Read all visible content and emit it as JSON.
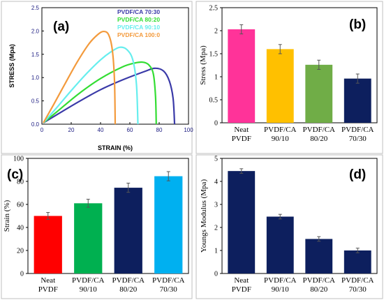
{
  "chart_data": [
    {
      "type": "line",
      "panel_label": "(a)",
      "xlabel": "STRAIN (%)",
      "ylabel": "STRESS (Mpa)",
      "xlim": [
        0,
        100
      ],
      "ylim": [
        0,
        2.5
      ],
      "xticks": [
        "0",
        "20",
        "40",
        "60",
        "80",
        "100"
      ],
      "yticks": [
        "0.0",
        "0.5",
        "1.0",
        "1.5",
        "2.0",
        "2.5"
      ],
      "legend_position": "top-right",
      "series": [
        {
          "name": "PVDF/CA 70:30",
          "color": "#3a3aa8",
          "x": [
            1,
            10,
            25,
            40,
            55,
            70,
            77,
            83,
            87,
            89.5,
            90.5
          ],
          "y": [
            0.03,
            0.2,
            0.48,
            0.74,
            0.95,
            1.13,
            1.2,
            1.14,
            0.92,
            0.55,
            0.0
          ]
        },
        {
          "name": "PVDF/CA 80:20",
          "color": "#33dd33",
          "x": [
            1,
            10,
            25,
            40,
            55,
            63,
            69,
            73,
            76,
            77.5,
            78
          ],
          "y": [
            0.03,
            0.26,
            0.65,
            0.98,
            1.23,
            1.31,
            1.33,
            1.27,
            1.08,
            0.6,
            0.0
          ]
        },
        {
          "name": "PVDF/CA 90:10",
          "color": "#66eeee",
          "x": [
            1,
            10,
            20,
            30,
            40,
            47,
            53,
            58,
            62,
            64.5,
            65.5
          ],
          "y": [
            0.03,
            0.35,
            0.72,
            1.07,
            1.38,
            1.55,
            1.65,
            1.6,
            1.38,
            0.85,
            0.0
          ]
        },
        {
          "name": "PVDF/CA 100:0",
          "color": "#f39a3c",
          "x": [
            1,
            8,
            16,
            24,
            32,
            38,
            42,
            45.5,
            48,
            49.5,
            50
          ],
          "y": [
            0.03,
            0.42,
            0.88,
            1.33,
            1.72,
            1.92,
            1.99,
            1.92,
            1.6,
            0.95,
            0.0
          ]
        }
      ]
    },
    {
      "type": "bar",
      "panel_label": "(b)",
      "ylabel": "Stress (Mpa)",
      "ylim": [
        0,
        2.5
      ],
      "yticks": [
        "0",
        "0.5",
        "1",
        "1.5",
        "2",
        "2.5"
      ],
      "categories": [
        [
          "Neat",
          "PVDF"
        ],
        [
          "PVDF/CA",
          "90/10"
        ],
        [
          "PVDF/CA",
          "80/20"
        ],
        [
          "PVDF/CA",
          "70/30"
        ]
      ],
      "values": [
        2.03,
        1.6,
        1.26,
        0.96
      ],
      "errors": [
        0.1,
        0.1,
        0.1,
        0.1
      ],
      "colors": [
        "#ff3399",
        "#ffc000",
        "#70ad47",
        "#0d1f5e"
      ]
    },
    {
      "type": "bar",
      "panel_label": "(c)",
      "ylabel": "Strain (%)",
      "ylim": [
        0,
        100
      ],
      "yticks": [
        "0",
        "20",
        "40",
        "60",
        "80",
        "100"
      ],
      "categories": [
        [
          "Neat",
          "PVDF"
        ],
        [
          "PVDF/CA",
          "90/10"
        ],
        [
          "PVDF/CA",
          "80/20"
        ],
        [
          "PVDF/CA",
          "70/30"
        ]
      ],
      "values": [
        50,
        61,
        74.5,
        84.5
      ],
      "errors": [
        3,
        3.5,
        4,
        4
      ],
      "colors": [
        "#ff0000",
        "#00b050",
        "#0d1f5e",
        "#00b0f0"
      ]
    },
    {
      "type": "bar",
      "panel_label": "(d)",
      "ylabel": "Youngs Modulus (Mpa)",
      "ylim": [
        0,
        5
      ],
      "yticks": [
        "0",
        "1",
        "2",
        "3",
        "4",
        "5"
      ],
      "categories": [
        [
          "Neat",
          "PVDF"
        ],
        [
          "PVDF/CA",
          "90/10"
        ],
        [
          "PVDF/CA",
          "80/20"
        ],
        [
          "PVDF/CA",
          "70/30"
        ]
      ],
      "values": [
        4.45,
        2.47,
        1.5,
        1.0
      ],
      "errors": [
        0.1,
        0.1,
        0.1,
        0.1
      ],
      "colors": [
        "#0d1f5e",
        "#0d1f5e",
        "#0d1f5e",
        "#0d1f5e"
      ]
    }
  ]
}
